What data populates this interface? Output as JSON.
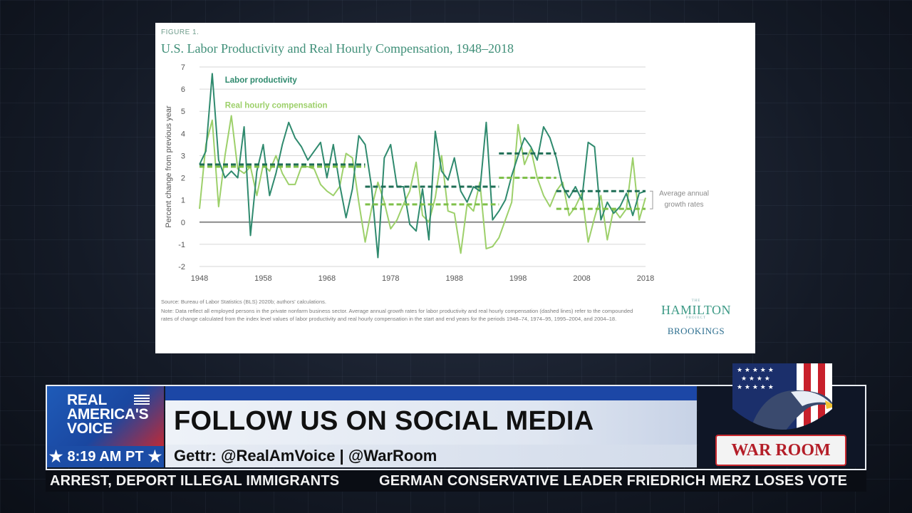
{
  "figure": {
    "label": "FIGURE 1.",
    "title": "U.S. Labor Productivity and Real Hourly Compensation, 1948–2018",
    "source": "Source: Bureau of Labor Statistics (BLS) 2020b; authors' calculations.",
    "note": "Note: Data reflect all employed persons in the private nonfarm business sector. Average annual growth rates for labor productivity and real hourly compensation (dashed lines) refer to the compounded rates of change calculated from the index level values of labor productivity and real hourly compensation in the start and end years for the periods 1948–74, 1974–95, 1995–2004, and 2004–18.",
    "logo_the": "THE",
    "logo_hamilton": "HAMILTON",
    "logo_project": "PROJECT",
    "logo_brookings": "BROOKINGS"
  },
  "chart_data": {
    "type": "line",
    "ylabel": "Percent change from previous year",
    "ylim": [
      -2,
      7
    ],
    "xlim": [
      1948,
      2018
    ],
    "yticks": [
      "7",
      "6",
      "5",
      "4",
      "3",
      "2",
      "1",
      "0",
      "-1",
      "-2"
    ],
    "xticks": [
      "1948",
      "1958",
      "1968",
      "1978",
      "1988",
      "1998",
      "2008",
      "2018"
    ],
    "annotation": "Average annual growth rates",
    "grid": true,
    "colors": {
      "productivity": "#2f8a6e",
      "compensation": "#9dd06a",
      "zero": "#8a8a8a"
    },
    "x": [
      1948,
      1949,
      1950,
      1951,
      1952,
      1953,
      1954,
      1955,
      1956,
      1957,
      1958,
      1959,
      1960,
      1961,
      1962,
      1963,
      1964,
      1965,
      1966,
      1967,
      1968,
      1969,
      1970,
      1971,
      1972,
      1973,
      1974,
      1975,
      1976,
      1977,
      1978,
      1979,
      1980,
      1981,
      1982,
      1983,
      1984,
      1985,
      1986,
      1987,
      1988,
      1989,
      1990,
      1991,
      1992,
      1993,
      1994,
      1995,
      1996,
      1997,
      1998,
      1999,
      2000,
      2001,
      2002,
      2003,
      2004,
      2005,
      2006,
      2007,
      2008,
      2009,
      2010,
      2011,
      2012,
      2013,
      2014,
      2015,
      2016,
      2017,
      2018
    ],
    "series": [
      {
        "name": "Labor productivity",
        "values": [
          2.6,
          3.2,
          6.7,
          2.8,
          2.0,
          2.3,
          2.0,
          4.3,
          -0.6,
          2.3,
          3.5,
          1.2,
          2.2,
          3.5,
          4.5,
          3.8,
          3.4,
          2.8,
          3.2,
          3.6,
          2.0,
          3.5,
          1.7,
          0.2,
          1.5,
          3.9,
          3.5,
          1.6,
          -1.6,
          2.9,
          3.5,
          1.6,
          1.6,
          -0.1,
          -0.4,
          1.5,
          -0.8,
          4.1,
          2.3,
          1.9,
          2.9,
          1.4,
          0.9,
          1.6,
          1.4,
          4.5,
          0.1,
          0.5,
          1.0,
          2.1,
          3.0,
          3.8,
          3.4,
          2.8,
          4.3,
          3.8,
          2.9,
          1.6,
          1.1,
          1.6,
          1.0,
          3.6,
          3.4,
          0.1,
          0.9,
          0.4,
          0.7,
          1.3,
          0.3,
          1.3,
          1.4
        ]
      },
      {
        "name": "Real hourly compensation",
        "values": [
          0.6,
          3.5,
          4.6,
          0.7,
          3.0,
          4.8,
          2.4,
          2.2,
          2.5,
          1.2,
          2.6,
          2.3,
          3.0,
          2.2,
          1.7,
          1.7,
          2.5,
          2.5,
          2.4,
          1.7,
          1.4,
          1.2,
          1.6,
          3.1,
          2.9,
          0.9,
          -0.9,
          0.6,
          1.8,
          0.9,
          -0.3,
          0.1,
          0.8,
          1.4,
          2.7,
          0.3,
          0.0,
          1.1,
          3.0,
          0.5,
          0.4,
          -1.4,
          0.8,
          0.5,
          1.8,
          -1.2,
          -1.1,
          -0.7,
          0.1,
          0.9,
          4.4,
          2.6,
          3.3,
          2.0,
          1.2,
          0.7,
          1.4,
          1.8,
          0.3,
          0.7,
          1.3,
          -0.9,
          0.2,
          1.2,
          -0.8,
          0.6,
          0.2,
          0.6,
          2.9,
          0.1,
          1.1
        ]
      }
    ],
    "averages": [
      {
        "series": "Labor productivity",
        "from": 1948,
        "to": 1974,
        "value": 2.6
      },
      {
        "series": "Labor productivity",
        "from": 1974,
        "to": 1995,
        "value": 1.6
      },
      {
        "series": "Labor productivity",
        "from": 1995,
        "to": 2004,
        "value": 3.1
      },
      {
        "series": "Labor productivity",
        "from": 2004,
        "to": 2018,
        "value": 1.4
      },
      {
        "series": "Real hourly compensation",
        "from": 1948,
        "to": 1974,
        "value": 2.5
      },
      {
        "series": "Real hourly compensation",
        "from": 1974,
        "to": 1995,
        "value": 0.8
      },
      {
        "series": "Real hourly compensation",
        "from": 1995,
        "to": 2004,
        "value": 2.0
      },
      {
        "series": "Real hourly compensation",
        "from": 2004,
        "to": 2018,
        "value": 0.6
      }
    ]
  },
  "lower_third": {
    "network_line1": "REAL",
    "network_line2": "AMERICA'S",
    "network_line3": "VOICE",
    "time": "8:19 AM PT",
    "headline": "FOLLOW US ON SOCIAL MEDIA",
    "handles": "Gettr: @RealAmVoice | @WarRoom",
    "show_logo": "WAR ROOM",
    "ticker": [
      "ARREST, DEPORT ILLEGAL IMMIGRANTS",
      "GERMAN CONSERVATIVE LEADER FRIEDRICH MERZ LOSES VOTE"
    ]
  }
}
